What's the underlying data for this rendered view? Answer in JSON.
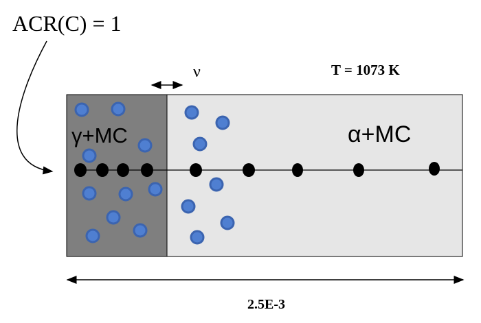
{
  "labels": {
    "condition": "ACR(C) = 1",
    "velocity": "ν",
    "temperature": "T = 1073 K",
    "left_phase": "γ+MC",
    "right_phase": "α+MC",
    "length": "2.5E-3"
  }
}
